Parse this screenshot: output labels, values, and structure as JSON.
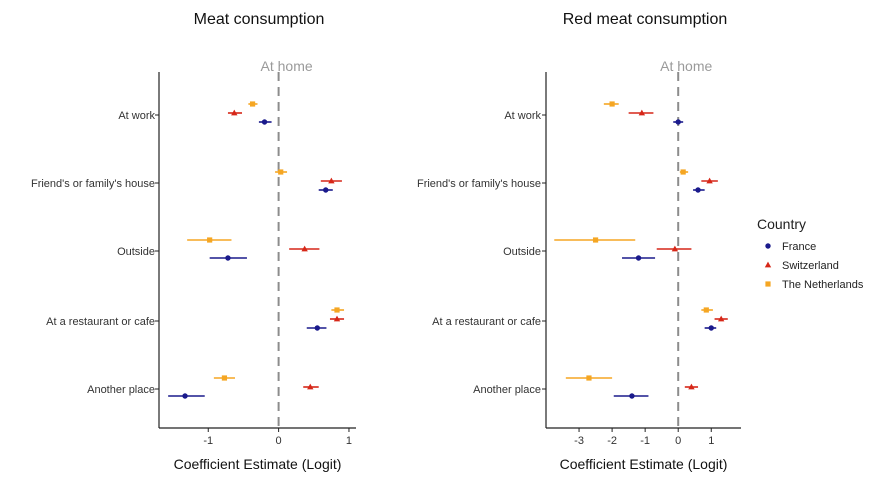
{
  "legend": {
    "title": "Country",
    "placement": "right",
    "items": [
      {
        "label": "France",
        "color": "#1a1a8c",
        "shape": "circle"
      },
      {
        "label": "Switzerland",
        "color": "#d62718",
        "shape": "triangle"
      },
      {
        "label": "The Netherlands",
        "color": "#f5a623",
        "shape": "square"
      }
    ]
  },
  "chart_data": [
    {
      "type": "scatter",
      "title": "Meat consumption",
      "xlabel": "Coefficient Estimate (Logit)",
      "ylabel": "",
      "xlim": [
        -1.7,
        1.1
      ],
      "xticks": [
        -1,
        0,
        1
      ],
      "xtick_labels": [
        "-1",
        "0",
        "1"
      ],
      "reference_line": {
        "x": 0,
        "label": "At home",
        "style": "dashed"
      },
      "grid": false,
      "categories": [
        "At work",
        "Friend's or family's house",
        "Outside",
        "At a restaurant or cafe",
        "Another place"
      ],
      "series": [
        {
          "name": "France",
          "values": [
            -0.2,
            0.67,
            -0.72,
            0.55,
            -1.33
          ],
          "ci_low": [
            -0.28,
            0.57,
            -0.98,
            0.4,
            -1.57
          ],
          "ci_high": [
            -0.1,
            0.77,
            -0.45,
            0.68,
            -1.05
          ]
        },
        {
          "name": "Switzerland",
          "values": [
            -0.63,
            0.75,
            0.37,
            0.83,
            0.45
          ],
          "ci_low": [
            -0.72,
            0.6,
            0.15,
            0.73,
            0.35
          ],
          "ci_high": [
            -0.52,
            0.9,
            0.58,
            0.93,
            0.57
          ]
        },
        {
          "name": "The Netherlands",
          "values": [
            -0.37,
            0.03,
            -0.98,
            0.83,
            -0.77
          ],
          "ci_low": [
            -0.43,
            -0.05,
            -1.3,
            0.75,
            -0.92
          ],
          "ci_high": [
            -0.3,
            0.12,
            -0.67,
            0.93,
            -0.62
          ]
        }
      ]
    },
    {
      "type": "scatter",
      "title": "Red meat consumption",
      "xlabel": "Coefficient Estimate (Logit)",
      "ylabel": "",
      "xlim": [
        -4.0,
        1.9
      ],
      "xticks": [
        -3,
        -2,
        -1,
        0,
        1
      ],
      "xtick_labels": [
        "-3",
        "-2",
        "-1",
        "0",
        "1"
      ],
      "reference_line": {
        "x": 0,
        "label": "At home",
        "style": "dashed"
      },
      "grid": false,
      "categories": [
        "At work",
        "Friend's or family's house",
        "Outside",
        "At a restaurant or cafe",
        "Another place"
      ],
      "series": [
        {
          "name": "France",
          "values": [
            0.0,
            0.6,
            -1.2,
            1.0,
            -1.4
          ],
          "ci_low": [
            -0.15,
            0.45,
            -1.7,
            0.8,
            -1.95
          ],
          "ci_high": [
            0.15,
            0.8,
            -0.7,
            1.15,
            -0.9
          ]
        },
        {
          "name": "Switzerland",
          "values": [
            -1.1,
            0.95,
            -0.1,
            1.3,
            0.4
          ],
          "ci_low": [
            -1.5,
            0.7,
            -0.65,
            1.1,
            0.2
          ],
          "ci_high": [
            -0.75,
            1.2,
            0.4,
            1.5,
            0.6
          ]
        },
        {
          "name": "The Netherlands",
          "values": [
            -2.0,
            0.15,
            -2.5,
            0.85,
            -2.7
          ],
          "ci_low": [
            -2.25,
            0.05,
            -3.75,
            0.7,
            -3.4
          ],
          "ci_high": [
            -1.8,
            0.3,
            -1.3,
            1.05,
            -2.0
          ]
        }
      ]
    }
  ]
}
